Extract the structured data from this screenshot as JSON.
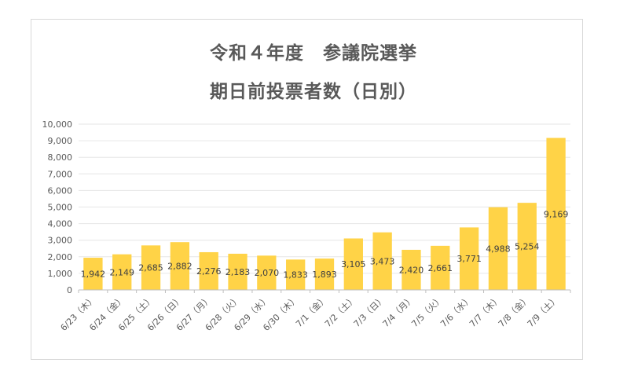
{
  "chart_data": {
    "type": "bar",
    "title_line1": "令和４年度　参議院選挙",
    "title_line2": "期日前投票者数（日別）",
    "categories": [
      "6/23（木）",
      "6/24（金）",
      "6/25（土）",
      "6/26（日）",
      "6/27（月）",
      "6/28（火）",
      "6/29（水）",
      "6/30（木）",
      "7/1（金）",
      "7/2（土）",
      "7/3（日）",
      "7/4（月）",
      "7/5（火）",
      "7/6（水）",
      "7/7（木）",
      "7/8（金）",
      "7/9（土）"
    ],
    "values": [
      1942,
      2149,
      2685,
      2882,
      2276,
      2183,
      2070,
      1833,
      1893,
      3105,
      3473,
      2420,
      2661,
      3771,
      4988,
      5254,
      9169
    ],
    "value_labels": [
      "1,942",
      "2,149",
      "2,685",
      "2,882",
      "2,276",
      "2,183",
      "2,070",
      "1,833",
      "1,893",
      "3,105",
      "3,473",
      "2,420",
      "2,661",
      "3,771",
      "4,988",
      "5,254",
      "9,169"
    ],
    "yticks": [
      "0",
      "1,000",
      "2,000",
      "3,000",
      "4,000",
      "5,000",
      "6,000",
      "7,000",
      "8,000",
      "9,000",
      "10,000"
    ],
    "ylim": [
      0,
      10000
    ],
    "grid": true,
    "legend": "none",
    "colors": {
      "bar": "#FFD347",
      "grid": "#e6e6e6",
      "axis": "#bfbfbf",
      "text": "#595959"
    }
  }
}
